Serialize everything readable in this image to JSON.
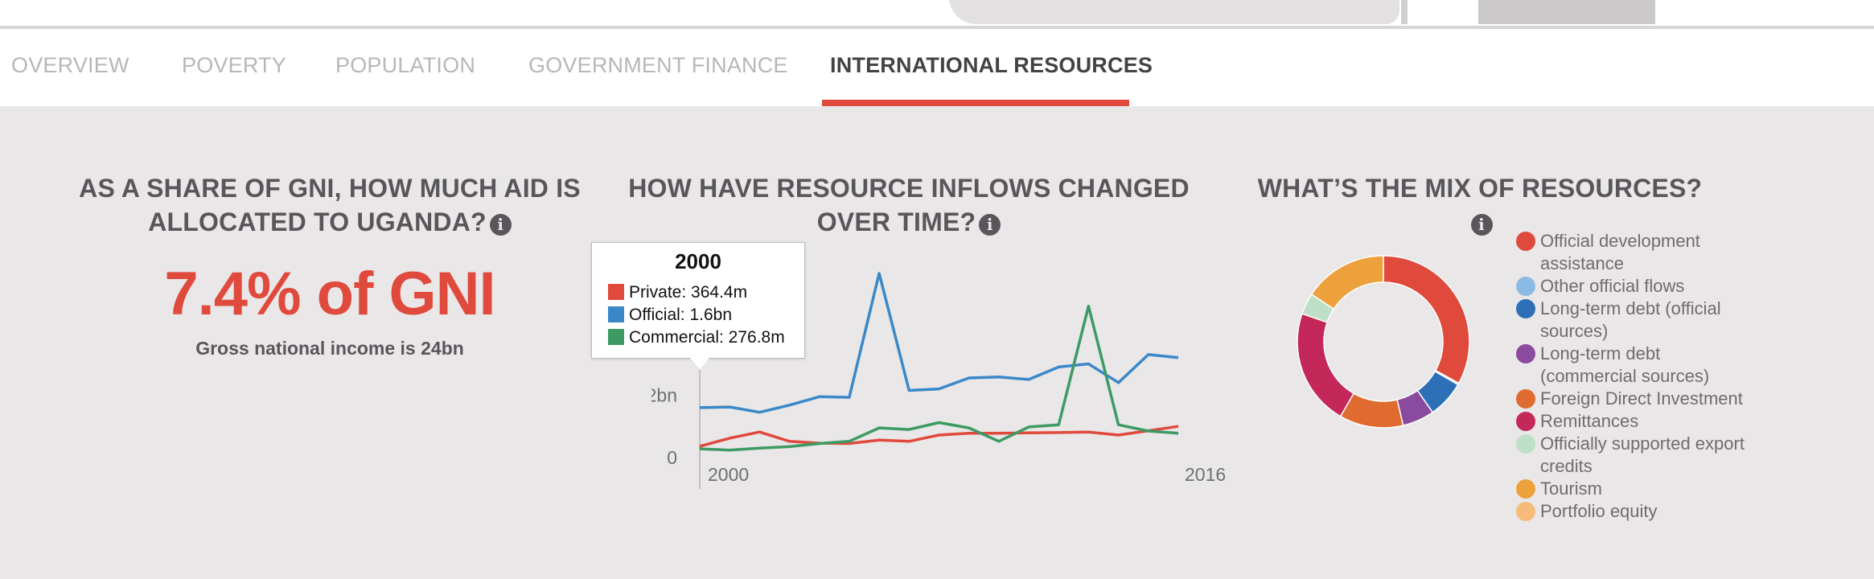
{
  "tabs": [
    {
      "label": "OVERVIEW"
    },
    {
      "label": "POVERTY"
    },
    {
      "label": "POPULATION"
    },
    {
      "label": "GOVERNMENT FINANCE"
    },
    {
      "label": "INTERNATIONAL RESOURCES"
    }
  ],
  "active_tab": "INTERNATIONAL RESOURCES",
  "panel1": {
    "title_line1": "AS A SHARE OF GNI, HOW MUCH AID IS",
    "title_line2": "ALLOCATED TO UGANDA?",
    "stat": "7.4% of GNI",
    "sub": "Gross national income is 24bn"
  },
  "panel2": {
    "title_line1": "HOW HAVE RESOURCE INFLOWS CHANGED",
    "title_line2": "OVER TIME?"
  },
  "panel3": {
    "title_line1": "WHAT’S THE MIX OF RESOURCES?"
  },
  "tooltip": {
    "title": "2000",
    "rows": [
      {
        "label": "Private: 364.4m",
        "color": "#e04a3c"
      },
      {
        "label": "Official: 1.6bn",
        "color": "#3a88c8"
      },
      {
        "label": "Commercial: 276.8m",
        "color": "#3e9a63"
      }
    ]
  },
  "colors": {
    "accent": "#e04a3c",
    "private": "#e04a3c",
    "official": "#3a88c8",
    "commercial": "#3e9a63"
  },
  "chart_data": [
    {
      "type": "line",
      "x": [
        2000,
        2001,
        2002,
        2003,
        2004,
        2005,
        2006,
        2007,
        2008,
        2009,
        2010,
        2011,
        2012,
        2013,
        2014,
        2015,
        2016
      ],
      "x_tick_labels": [
        "2000",
        "2016"
      ],
      "y_tick_labels": [
        "0",
        "2bn"
      ],
      "y_ticks": [
        0,
        2
      ],
      "ylim": [
        0,
        6
      ],
      "series": [
        {
          "name": "Private",
          "color": "#e04a3c",
          "values": [
            0.36,
            0.62,
            0.82,
            0.52,
            0.46,
            0.45,
            0.56,
            0.52,
            0.72,
            0.78,
            0.78,
            0.79,
            0.8,
            0.82,
            0.72,
            0.86,
            1.0
          ]
        },
        {
          "name": "Official",
          "color": "#3a88c8",
          "values": [
            1.6,
            1.62,
            1.45,
            1.68,
            1.95,
            1.93,
            5.9,
            2.15,
            2.2,
            2.55,
            2.58,
            2.5,
            2.9,
            3.0,
            2.4,
            3.3,
            3.2
          ]
        },
        {
          "name": "Commercial",
          "color": "#3e9a63",
          "values": [
            0.28,
            0.24,
            0.3,
            0.35,
            0.45,
            0.52,
            0.95,
            0.9,
            1.12,
            0.95,
            0.52,
            0.98,
            1.05,
            4.85,
            1.05,
            0.85,
            0.78
          ]
        }
      ]
    },
    {
      "type": "pie",
      "donut": true,
      "slices": [
        {
          "label": "Official development assistance",
          "value": 33.0,
          "color": "#e04a3c"
        },
        {
          "label": "Other official flows",
          "value": 0.3,
          "color": "#8bbbe4"
        },
        {
          "label": "Long-term debt (official sources)",
          "value": 7.0,
          "color": "#2e70b8"
        },
        {
          "label": "Long-term debt (commercial sources)",
          "value": 6.0,
          "color": "#8a4a9e"
        },
        {
          "label": "Foreign Direct Investment",
          "value": 12.0,
          "color": "#e06b30"
        },
        {
          "label": "Remittances",
          "value": 22.0,
          "color": "#c4285a"
        },
        {
          "label": "Officially supported export credits",
          "value": 4.0,
          "color": "#bfe0c8"
        },
        {
          "label": "Tourism",
          "value": 15.7,
          "color": "#eda13c"
        },
        {
          "label": "Portfolio equity",
          "value": 0.0,
          "color": "#f6bb78"
        }
      ]
    }
  ]
}
